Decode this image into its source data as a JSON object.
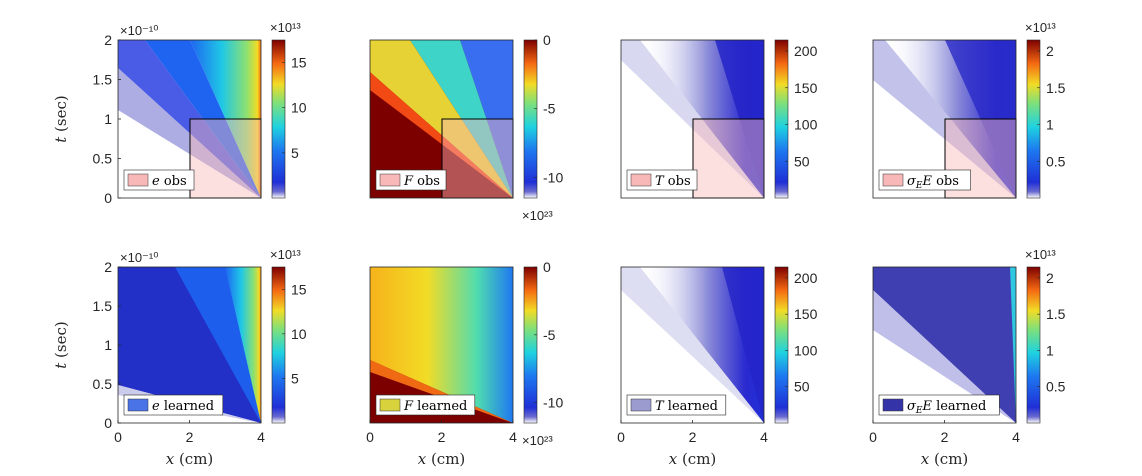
{
  "chart_data": [
    {
      "type": "heatmap",
      "panel": "e obs",
      "legend": {
        "symbol": "e",
        "text": "obs",
        "swatch": "#f8b8b8"
      },
      "x_ticks": [
        "0",
        "2",
        "4"
      ],
      "x_ticks_shown": false,
      "xlim": [
        0,
        4
      ],
      "y_ticks": [
        "0",
        "0.5",
        "1",
        "1.5",
        "2"
      ],
      "y_ticks_shown": true,
      "ylim": [
        0,
        2
      ],
      "y_multiplier": "×10⁻¹⁰",
      "ylabel": {
        "var": "t",
        "unit": "(sec)"
      },
      "colorbar": {
        "ticks": [
          "5",
          "10",
          "15"
        ],
        "values": [
          5,
          10,
          15
        ],
        "range": [
          0,
          17.5
        ],
        "multiplier": "×10¹³",
        "multiplier_pos": "top"
      },
      "obs_region": {
        "x": [
          2,
          4
        ],
        "t": [
          0,
          1
        ]
      }
    },
    {
      "type": "heatmap",
      "panel": "F obs",
      "legend": {
        "symbol": "F",
        "text": "obs",
        "swatch": "#f8b8b8"
      },
      "x_ticks": [
        "0",
        "2",
        "4"
      ],
      "x_ticks_shown": false,
      "xlim": [
        0,
        4
      ],
      "y_ticks": [
        "0",
        "0.5",
        "1",
        "1.5",
        "2"
      ],
      "y_ticks_shown": false,
      "ylim": [
        0,
        2
      ],
      "colorbar": {
        "ticks": [
          "0",
          "-5",
          "-10"
        ],
        "values": [
          0,
          -5,
          -10
        ],
        "range": [
          -11.5,
          0
        ],
        "multiplier": "×10²³",
        "multiplier_pos": "bottom"
      },
      "obs_region": {
        "x": [
          2,
          4
        ],
        "t": [
          0,
          1
        ]
      }
    },
    {
      "type": "heatmap",
      "panel": "T obs",
      "legend": {
        "symbol": "T",
        "text": "obs",
        "swatch": "#f8b8b8"
      },
      "x_ticks": [
        "0",
        "2",
        "4"
      ],
      "x_ticks_shown": false,
      "xlim": [
        0,
        4
      ],
      "y_ticks": [
        "0",
        "0.5",
        "1",
        "1.5",
        "2"
      ],
      "y_ticks_shown": false,
      "ylim": [
        0,
        2
      ],
      "colorbar": {
        "ticks": [
          "50",
          "100",
          "150",
          "200"
        ],
        "values": [
          50,
          100,
          150,
          200
        ],
        "range": [
          0,
          215
        ],
        "multiplier": "",
        "multiplier_pos": "top"
      },
      "obs_region": {
        "x": [
          2,
          4
        ],
        "t": [
          0,
          1
        ]
      }
    },
    {
      "type": "heatmap",
      "panel": "σE E obs",
      "legend": {
        "symbol": "σ_E E",
        "text": "obs",
        "swatch": "#f8b8b8"
      },
      "x_ticks": [
        "0",
        "2",
        "4"
      ],
      "x_ticks_shown": false,
      "xlim": [
        0,
        4
      ],
      "y_ticks": [
        "0",
        "0.5",
        "1",
        "1.5",
        "2"
      ],
      "y_ticks_shown": false,
      "ylim": [
        0,
        2
      ],
      "colorbar": {
        "ticks": [
          "0.5",
          "1",
          "1.5",
          "2"
        ],
        "values": [
          0.5,
          1,
          1.5,
          2
        ],
        "range": [
          0,
          2.15
        ],
        "multiplier": "×10¹³",
        "multiplier_pos": "top"
      },
      "obs_region": {
        "x": [
          2,
          4
        ],
        "t": [
          0,
          1
        ]
      }
    },
    {
      "type": "heatmap",
      "panel": "e learned",
      "legend": {
        "symbol": "e",
        "text": "learned",
        "swatch": "#4a73e8"
      },
      "x_ticks": [
        "0",
        "2",
        "4"
      ],
      "x_ticks_shown": true,
      "xlim": [
        0,
        4
      ],
      "xlabel": {
        "var": "x",
        "unit": "(cm)"
      },
      "y_ticks": [
        "0",
        "0.5",
        "1",
        "1.5",
        "2"
      ],
      "y_ticks_shown": true,
      "ylim": [
        0,
        2
      ],
      "y_multiplier": "×10⁻¹⁰",
      "ylabel": {
        "var": "t",
        "unit": "(sec)"
      },
      "colorbar": {
        "ticks": [
          "5",
          "10",
          "15"
        ],
        "values": [
          5,
          10,
          15
        ],
        "range": [
          0,
          17.5
        ],
        "multiplier": "×10¹³",
        "multiplier_pos": "top"
      }
    },
    {
      "type": "heatmap",
      "panel": "F learned",
      "legend": {
        "symbol": "F",
        "text": "learned",
        "swatch": "#d8d23c"
      },
      "x_ticks": [
        "0",
        "2",
        "4"
      ],
      "x_ticks_shown": true,
      "xlim": [
        0,
        4
      ],
      "xlabel": {
        "var": "x",
        "unit": "(cm)"
      },
      "y_ticks": [
        "0",
        "0.5",
        "1",
        "1.5",
        "2"
      ],
      "y_ticks_shown": false,
      "ylim": [
        0,
        2
      ],
      "colorbar": {
        "ticks": [
          "0",
          "-5",
          "-10"
        ],
        "values": [
          0,
          -5,
          -10
        ],
        "range": [
          -11.5,
          0
        ],
        "multiplier": "×10²³",
        "multiplier_pos": "bottom"
      }
    },
    {
      "type": "heatmap",
      "panel": "T learned",
      "legend": {
        "symbol": "T",
        "text": "learned",
        "swatch": "#9b9bd0"
      },
      "x_ticks": [
        "0",
        "2",
        "4"
      ],
      "x_ticks_shown": true,
      "xlim": [
        0,
        4
      ],
      "xlabel": {
        "var": "x",
        "unit": "(cm)"
      },
      "y_ticks": [
        "0",
        "0.5",
        "1",
        "1.5",
        "2"
      ],
      "y_ticks_shown": false,
      "ylim": [
        0,
        2
      ],
      "colorbar": {
        "ticks": [
          "50",
          "100",
          "150",
          "200"
        ],
        "values": [
          50,
          100,
          150,
          200
        ],
        "range": [
          0,
          215
        ],
        "multiplier": "",
        "multiplier_pos": "top"
      }
    },
    {
      "type": "heatmap",
      "panel": "σE E learned",
      "legend": {
        "symbol": "σ_E E",
        "text": "learned",
        "swatch": "#3434a8"
      },
      "x_ticks": [
        "0",
        "2",
        "4"
      ],
      "x_ticks_shown": true,
      "xlim": [
        0,
        4
      ],
      "xlabel": {
        "var": "x",
        "unit": "(cm)"
      },
      "y_ticks": [
        "0",
        "0.5",
        "1",
        "1.5",
        "2"
      ],
      "y_ticks_shown": false,
      "ylim": [
        0,
        2
      ],
      "colorbar": {
        "ticks": [
          "0.5",
          "1",
          "1.5",
          "2"
        ],
        "values": [
          0.5,
          1,
          1.5,
          2
        ],
        "range": [
          0,
          2.15
        ],
        "multiplier": "×10¹³",
        "multiplier_pos": "top"
      }
    }
  ]
}
